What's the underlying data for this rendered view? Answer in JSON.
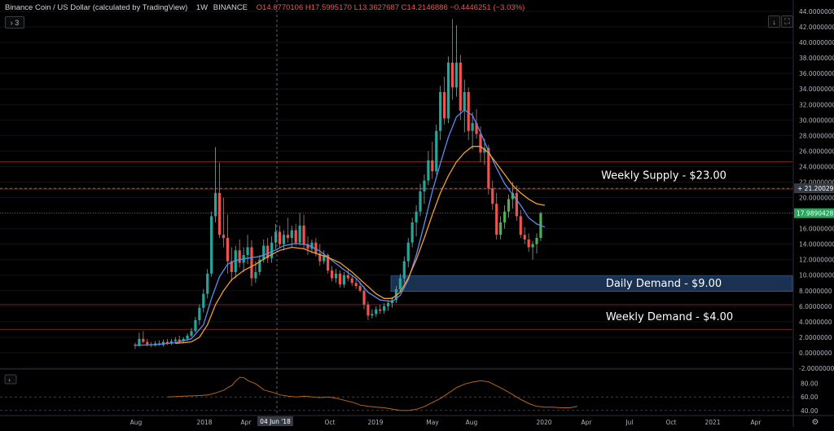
{
  "header": {
    "symbol": "Binance Coin / US Dollar (calculated by TradingView)",
    "interval": "1W",
    "exchange": "BINANCE",
    "ohlc": "O14.6770106  H17.5995170  L13.3627687  C14.2146886  −0.4446251 (−3.03%)"
  },
  "controls": {
    "collapse_label": "› 3",
    "download_icon": "arrow-down-icon",
    "fullscreen_icon": "maximize-icon",
    "settings_icon": "gear-icon"
  },
  "colors": {
    "background": "#000000",
    "up_candle": "#26a69a",
    "up_candle_bright": "#4caf50",
    "down_candle": "#ef5350",
    "ma_fast": "#5b8def",
    "ma_slow": "#f0a030",
    "demand_zone": "#1e3a5f",
    "oscillator": "#b5651d"
  },
  "chart_data": {
    "type": "candlestick",
    "price_axis": {
      "ylim": [
        -2,
        44
      ],
      "ticks": [
        "44.0000000",
        "42.0000000",
        "40.0000000",
        "38.0000000",
        "36.0000000",
        "34.0000000",
        "32.0000000",
        "30.0000000",
        "28.0000000",
        "26.0000000",
        "24.0000000",
        "22.0000000",
        "20.0000000",
        "18.0000000",
        "16.0000000",
        "14.0000000",
        "12.0000000",
        "10.0000000",
        "8.0000000",
        "6.0000000",
        "4.0000000",
        "2.0000000",
        "0.0000000",
        "-2.0000000"
      ],
      "current_price_label": "17.9890428",
      "crosshair_price_label": "21.2002920"
    },
    "time_axis": {
      "labels": [
        "Aug",
        "2018",
        "Apr",
        "04 Jun '18",
        "Oct",
        "2019",
        "May",
        "Aug",
        "2020",
        "Apr",
        "Jul",
        "Oct",
        "2021",
        "Apr"
      ]
    },
    "levels": [
      {
        "label": "Weekly Supply - $23.00",
        "value": 24.6,
        "kind": "line"
      },
      {
        "label": "",
        "value": 21.1,
        "kind": "line"
      },
      {
        "label": "Daily Demand - $9.00",
        "value": 8.9,
        "low": 7.9,
        "high": 9.9,
        "kind": "zone"
      },
      {
        "label": "Weekly Demand - $4.00",
        "value": 6.2,
        "kind": "line"
      },
      {
        "label": "",
        "value": 3.0,
        "kind": "line"
      }
    ],
    "candles": [
      [
        1.05,
        1.3,
        0.5,
        0.9
      ],
      [
        0.9,
        2.6,
        0.8,
        1.8
      ],
      [
        1.8,
        2.8,
        1.2,
        1.4
      ],
      [
        1.4,
        1.8,
        0.8,
        1.1
      ],
      [
        1.1,
        1.4,
        0.7,
        0.95
      ],
      [
        0.95,
        1.5,
        0.8,
        1.2
      ],
      [
        1.2,
        1.6,
        0.9,
        1.0
      ],
      [
        1.0,
        1.7,
        0.8,
        1.4
      ],
      [
        1.4,
        1.8,
        1.0,
        1.2
      ],
      [
        1.2,
        1.8,
        1.0,
        1.5
      ],
      [
        1.5,
        2.0,
        1.2,
        1.7
      ],
      [
        1.7,
        2.2,
        1.2,
        1.5
      ],
      [
        1.5,
        2.0,
        1.2,
        1.8
      ],
      [
        1.8,
        2.5,
        1.5,
        2.2
      ],
      [
        2.2,
        3.2,
        2.0,
        2.8
      ],
      [
        2.8,
        4.6,
        2.6,
        4.2
      ],
      [
        4.2,
        6.2,
        3.6,
        5.8
      ],
      [
        5.8,
        8.2,
        5.2,
        7.6
      ],
      [
        7.6,
        10.8,
        7.0,
        10.2
      ],
      [
        10.2,
        18.2,
        9.8,
        17.6
      ],
      [
        17.6,
        26.5,
        16.8,
        20.6
      ],
      [
        20.6,
        24.5,
        14.8,
        15.2
      ],
      [
        15.2,
        20.0,
        13.6,
        14.8
      ],
      [
        14.8,
        17.8,
        10.2,
        11.8
      ],
      [
        11.8,
        13.6,
        9.2,
        10.4
      ],
      [
        10.4,
        13.8,
        9.6,
        13.2
      ],
      [
        13.2,
        14.6,
        11.0,
        11.6
      ],
      [
        11.6,
        13.6,
        10.4,
        12.6
      ],
      [
        12.6,
        15.2,
        11.4,
        13.6
      ],
      [
        13.6,
        14.5,
        8.6,
        9.6
      ],
      [
        9.6,
        11.8,
        9.0,
        10.4
      ],
      [
        10.4,
        12.6,
        10.0,
        12.0
      ],
      [
        12.0,
        14.6,
        11.6,
        13.8
      ],
      [
        13.8,
        14.8,
        11.6,
        12.2
      ],
      [
        12.2,
        15.0,
        11.6,
        14.2
      ],
      [
        14.2,
        16.6,
        13.4,
        15.6
      ],
      [
        15.6,
        16.4,
        13.6,
        14.0
      ],
      [
        14.0,
        15.8,
        13.2,
        15.2
      ],
      [
        15.2,
        17.4,
        14.2,
        14.8
      ],
      [
        14.8,
        16.4,
        13.6,
        15.8
      ],
      [
        15.8,
        16.6,
        13.8,
        14.2
      ],
      [
        14.2,
        18.0,
        13.8,
        16.4
      ],
      [
        16.4,
        17.8,
        13.4,
        14.0
      ],
      [
        14.0,
        15.0,
        12.6,
        13.4
      ],
      [
        13.4,
        14.6,
        12.8,
        14.2
      ],
      [
        14.2,
        14.8,
        12.4,
        12.8
      ],
      [
        12.8,
        14.0,
        11.2,
        11.8
      ],
      [
        11.8,
        13.2,
        11.4,
        12.6
      ],
      [
        12.6,
        12.8,
        10.2,
        10.6
      ],
      [
        10.6,
        11.2,
        9.2,
        9.6
      ],
      [
        9.6,
        10.8,
        9.0,
        10.2
      ],
      [
        10.2,
        10.6,
        8.4,
        8.8
      ],
      [
        8.8,
        10.4,
        8.4,
        10.0
      ],
      [
        10.0,
        10.8,
        9.2,
        9.6
      ],
      [
        9.6,
        10.0,
        8.6,
        9.0
      ],
      [
        9.0,
        9.6,
        8.2,
        8.6
      ],
      [
        8.6,
        9.2,
        7.8,
        8.0
      ],
      [
        8.0,
        8.6,
        5.6,
        6.2
      ],
      [
        6.2,
        6.6,
        4.2,
        4.8
      ],
      [
        4.8,
        5.6,
        4.4,
        5.0
      ],
      [
        5.0,
        6.0,
        4.6,
        5.6
      ],
      [
        5.6,
        6.2,
        5.0,
        5.4
      ],
      [
        5.4,
        6.4,
        5.0,
        6.0
      ],
      [
        6.0,
        6.8,
        5.4,
        6.4
      ],
      [
        6.4,
        7.2,
        5.8,
        6.8
      ],
      [
        6.8,
        8.6,
        6.4,
        8.2
      ],
      [
        8.2,
        10.2,
        7.8,
        9.6
      ],
      [
        9.6,
        12.4,
        9.0,
        11.8
      ],
      [
        11.8,
        14.8,
        11.0,
        14.2
      ],
      [
        14.2,
        17.4,
        13.6,
        16.8
      ],
      [
        16.8,
        19.0,
        15.0,
        18.2
      ],
      [
        18.2,
        21.8,
        17.6,
        20.8
      ],
      [
        20.8,
        23.0,
        19.2,
        22.2
      ],
      [
        22.2,
        26.0,
        21.6,
        24.8
      ],
      [
        24.8,
        27.2,
        22.4,
        23.4
      ],
      [
        23.4,
        29.4,
        23.0,
        28.6
      ],
      [
        28.6,
        34.4,
        27.4,
        33.6
      ],
      [
        33.6,
        35.6,
        29.4,
        30.2
      ],
      [
        30.2,
        38.2,
        29.6,
        37.4
      ],
      [
        37.4,
        43.0,
        32.6,
        34.2
      ],
      [
        34.2,
        42.2,
        33.0,
        37.4
      ],
      [
        37.4,
        38.4,
        30.0,
        31.2
      ],
      [
        31.2,
        35.2,
        28.4,
        33.6
      ],
      [
        33.6,
        34.2,
        27.4,
        28.6
      ],
      [
        28.6,
        31.0,
        26.2,
        29.6
      ],
      [
        29.6,
        31.4,
        27.6,
        28.2
      ],
      [
        28.2,
        29.2,
        24.6,
        25.8
      ],
      [
        25.8,
        27.6,
        24.2,
        26.4
      ],
      [
        26.4,
        26.8,
        20.4,
        21.2
      ],
      [
        21.2,
        22.2,
        18.4,
        19.2
      ],
      [
        19.2,
        20.6,
        14.6,
        15.2
      ],
      [
        15.2,
        17.6,
        14.6,
        16.8
      ],
      [
        16.8,
        19.0,
        16.0,
        18.2
      ],
      [
        18.2,
        20.4,
        17.4,
        19.8
      ],
      [
        19.8,
        22.0,
        18.6,
        20.6
      ],
      [
        20.6,
        21.6,
        17.0,
        17.6
      ],
      [
        17.6,
        18.4,
        14.8,
        15.2
      ],
      [
        15.2,
        16.2,
        14.0,
        14.6
      ],
      [
        14.6,
        15.4,
        13.0,
        13.6
      ],
      [
        13.6,
        14.4,
        12.0,
        14.0
      ],
      [
        14.0,
        15.4,
        12.8,
        14.8
      ],
      [
        14.8,
        18.2,
        14.4,
        17.99
      ]
    ],
    "ma_fast": [
      [
        0,
        0.95
      ],
      [
        5,
        1.05
      ],
      [
        10,
        1.3
      ],
      [
        14,
        1.8
      ],
      [
        17,
        3.6
      ],
      [
        19,
        7.0
      ],
      [
        21,
        9.8
      ],
      [
        23,
        11.4
      ],
      [
        25,
        11.9
      ],
      [
        28,
        12.2
      ],
      [
        31,
        12.4
      ],
      [
        34,
        13.0
      ],
      [
        37,
        13.8
      ],
      [
        40,
        14.1
      ],
      [
        43,
        13.9
      ],
      [
        46,
        13.1
      ],
      [
        49,
        11.9
      ],
      [
        52,
        10.7
      ],
      [
        55,
        9.6
      ],
      [
        58,
        7.8
      ],
      [
        61,
        6.8
      ],
      [
        64,
        6.6
      ],
      [
        66,
        7.4
      ],
      [
        68,
        9.4
      ],
      [
        70,
        12.6
      ],
      [
        72,
        16.6
      ],
      [
        74,
        20.8
      ],
      [
        76,
        24.4
      ],
      [
        78,
        27.8
      ],
      [
        80,
        30.4
      ],
      [
        82,
        31.3
      ],
      [
        84,
        30.6
      ],
      [
        86,
        28.4
      ],
      [
        88,
        26.0
      ],
      [
        90,
        23.8
      ],
      [
        92,
        21.8
      ],
      [
        94,
        20.4
      ],
      [
        96,
        19.0
      ],
      [
        98,
        17.4
      ],
      [
        100,
        16.6
      ],
      [
        102,
        16.2
      ]
    ],
    "ma_slow": [
      [
        10,
        1.2
      ],
      [
        14,
        1.4
      ],
      [
        16,
        2.0
      ],
      [
        18,
        3.6
      ],
      [
        20,
        6.2
      ],
      [
        22,
        8.0
      ],
      [
        24,
        9.4
      ],
      [
        27,
        10.6
      ],
      [
        30,
        11.4
      ],
      [
        33,
        12.4
      ],
      [
        36,
        13.2
      ],
      [
        39,
        13.6
      ],
      [
        42,
        13.4
      ],
      [
        45,
        12.8
      ],
      [
        48,
        12.3
      ],
      [
        51,
        11.6
      ],
      [
        54,
        10.4
      ],
      [
        57,
        9.0
      ],
      [
        60,
        7.6
      ],
      [
        62,
        7.0
      ],
      [
        64,
        7.0
      ],
      [
        66,
        7.8
      ],
      [
        68,
        9.6
      ],
      [
        70,
        12.0
      ],
      [
        72,
        14.8
      ],
      [
        74,
        17.8
      ],
      [
        76,
        20.6
      ],
      [
        78,
        22.8
      ],
      [
        80,
        24.6
      ],
      [
        82,
        25.8
      ],
      [
        84,
        26.6
      ],
      [
        86,
        26.6
      ],
      [
        88,
        25.8
      ],
      [
        90,
        24.4
      ],
      [
        92,
        23.0
      ],
      [
        94,
        21.6
      ],
      [
        96,
        20.6
      ],
      [
        98,
        19.8
      ],
      [
        100,
        19.2
      ],
      [
        102,
        19.0
      ]
    ],
    "oscillator": {
      "ylim": [
        35,
        95
      ],
      "ticks": [
        "80.00",
        "60.00",
        "40.00"
      ],
      "bands": [
        60,
        40
      ],
      "values": [
        [
          0,
          60
        ],
        [
          4,
          61
        ],
        [
          8,
          62
        ],
        [
          10,
          63
        ],
        [
          12,
          66
        ],
        [
          14,
          70
        ],
        [
          15,
          74
        ],
        [
          16,
          77
        ],
        [
          17,
          84
        ],
        [
          18,
          89
        ],
        [
          19,
          88
        ],
        [
          20,
          84
        ],
        [
          22,
          79
        ],
        [
          24,
          70
        ],
        [
          26,
          67
        ],
        [
          28,
          63
        ],
        [
          30,
          61
        ],
        [
          32,
          60
        ],
        [
          34,
          61
        ],
        [
          36,
          60
        ],
        [
          38,
          59
        ],
        [
          40,
          60
        ],
        [
          42,
          58
        ],
        [
          44,
          55
        ],
        [
          46,
          52
        ],
        [
          48,
          48
        ],
        [
          50,
          46
        ],
        [
          52,
          45
        ],
        [
          54,
          44
        ],
        [
          56,
          42
        ],
        [
          58,
          40
        ],
        [
          60,
          40
        ],
        [
          62,
          42
        ],
        [
          64,
          46
        ],
        [
          66,
          52
        ],
        [
          68,
          58
        ],
        [
          70,
          66
        ],
        [
          72,
          74
        ],
        [
          74,
          79
        ],
        [
          76,
          82
        ],
        [
          78,
          84
        ],
        [
          80,
          82
        ],
        [
          82,
          76
        ],
        [
          84,
          70
        ],
        [
          86,
          63
        ],
        [
          88,
          56
        ],
        [
          90,
          50
        ],
        [
          92,
          46
        ],
        [
          94,
          45
        ],
        [
          96,
          45
        ],
        [
          98,
          44
        ],
        [
          100,
          44
        ],
        [
          102,
          46
        ]
      ]
    }
  }
}
